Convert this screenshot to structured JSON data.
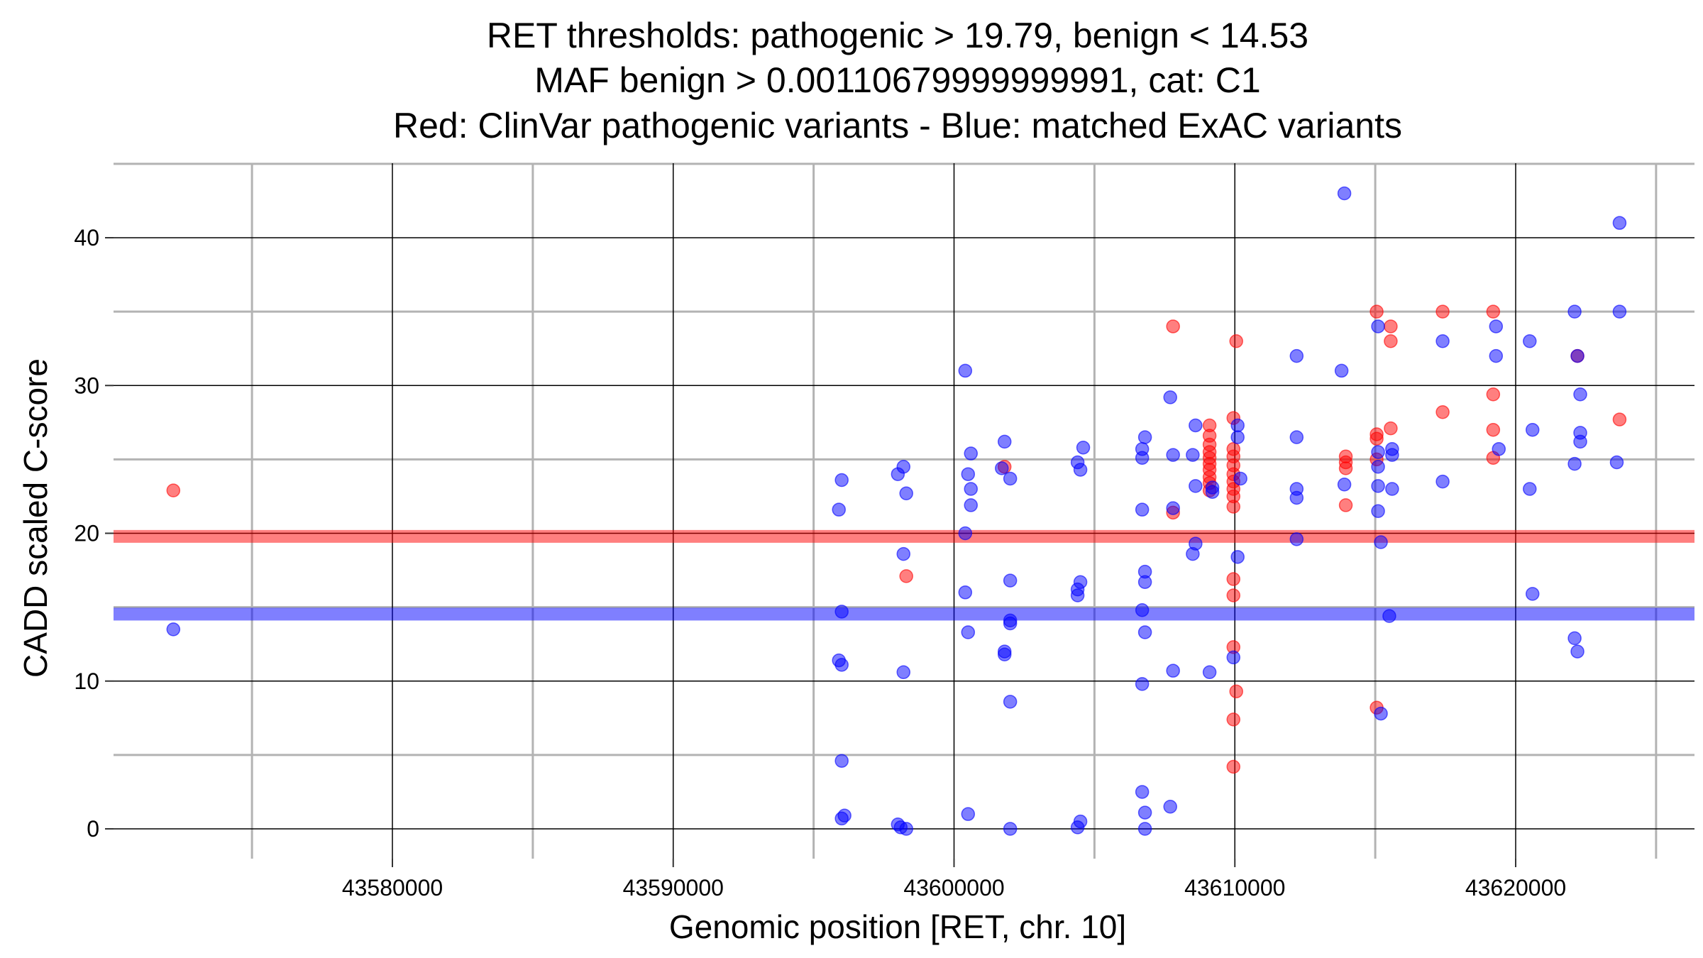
{
  "chart_data": {
    "type": "scatter",
    "title": [
      "RET thresholds: pathogenic > 19.79, benign < 14.53",
      "MAF benign > 0.00110679999999991, cat: C1",
      "Red: ClinVar pathogenic variants - Blue: matched ExAC variants"
    ],
    "xlabel": "Genomic position [RET, chr. 10]",
    "ylabel": "CADD scaled C-score",
    "xlim": [
      43569000,
      43626000
    ],
    "ylim": [
      -2,
      45
    ],
    "xticks": [
      43580000,
      43590000,
      43600000,
      43610000,
      43620000
    ],
    "xtick_labels": [
      "43580000",
      "43590000",
      "43600000",
      "43610000",
      "43620000"
    ],
    "yticks": [
      0,
      10,
      20,
      30,
      40
    ],
    "ytick_labels": [
      "0",
      "10",
      "20",
      "30",
      "40"
    ],
    "grid": true,
    "thresholds": [
      {
        "name": "pathogenic",
        "value": 19.79,
        "color": "#ff0000"
      },
      {
        "name": "benign",
        "value": 14.53,
        "color": "#0000ff"
      }
    ],
    "series": [
      {
        "name": "ClinVar pathogenic variants",
        "color": "#ff0000",
        "points": [
          [
            43572200,
            22.9
          ],
          [
            43598300,
            17.1
          ],
          [
            43601800,
            24.5
          ],
          [
            43607800,
            34.0
          ],
          [
            43607800,
            21.4
          ],
          [
            43609100,
            27.3
          ],
          [
            43609100,
            26.6
          ],
          [
            43609100,
            26.0
          ],
          [
            43609100,
            25.5
          ],
          [
            43609100,
            25.1
          ],
          [
            43609100,
            24.7
          ],
          [
            43609100,
            24.3
          ],
          [
            43609100,
            23.8
          ],
          [
            43609100,
            23.4
          ],
          [
            43609100,
            22.9
          ],
          [
            43609950,
            27.8
          ],
          [
            43609950,
            25.7
          ],
          [
            43609950,
            25.2
          ],
          [
            43609950,
            24.6
          ],
          [
            43609950,
            24.0
          ],
          [
            43609950,
            23.5
          ],
          [
            43609950,
            23.0
          ],
          [
            43609950,
            22.5
          ],
          [
            43609950,
            21.8
          ],
          [
            43609950,
            16.9
          ],
          [
            43609950,
            15.8
          ],
          [
            43609950,
            12.3
          ],
          [
            43609950,
            7.4
          ],
          [
            43609950,
            4.2
          ],
          [
            43610050,
            9.3
          ],
          [
            43610050,
            33.0
          ],
          [
            43613950,
            25.2
          ],
          [
            43613950,
            24.8
          ],
          [
            43613950,
            24.4
          ],
          [
            43613950,
            21.9
          ],
          [
            43615050,
            26.7
          ],
          [
            43615050,
            26.4
          ],
          [
            43615050,
            35.0
          ],
          [
            43615050,
            25.0
          ],
          [
            43615050,
            8.2
          ],
          [
            43615550,
            34.0
          ],
          [
            43615550,
            33.0
          ],
          [
            43615550,
            27.1
          ],
          [
            43617400,
            35.0
          ],
          [
            43617400,
            28.2
          ],
          [
            43619200,
            35.0
          ],
          [
            43619200,
            29.4
          ],
          [
            43619200,
            27.0
          ],
          [
            43619200,
            25.1
          ],
          [
            43622200,
            32.0
          ],
          [
            43623700,
            27.7
          ]
        ]
      },
      {
        "name": "matched ExAC variants",
        "color": "#0000ff",
        "points": [
          [
            43572200,
            13.5
          ],
          [
            43595900,
            21.6
          ],
          [
            43596000,
            23.6
          ],
          [
            43596000,
            14.7
          ],
          [
            43595900,
            11.4
          ],
          [
            43596000,
            11.1
          ],
          [
            43596000,
            4.6
          ],
          [
            43596000,
            0.7
          ],
          [
            43596100,
            0.9
          ],
          [
            43598000,
            24.0
          ],
          [
            43598200,
            24.5
          ],
          [
            43598300,
            22.7
          ],
          [
            43598200,
            18.6
          ],
          [
            43598200,
            10.6
          ],
          [
            43598000,
            0.3
          ],
          [
            43598100,
            0.1
          ],
          [
            43598300,
            0.0
          ],
          [
            43600400,
            31.0
          ],
          [
            43600600,
            25.4
          ],
          [
            43600500,
            24.0
          ],
          [
            43600600,
            23.0
          ],
          [
            43600600,
            21.9
          ],
          [
            43600400,
            20.0
          ],
          [
            43600400,
            16.0
          ],
          [
            43600500,
            13.3
          ],
          [
            43600500,
            1.0
          ],
          [
            43601800,
            26.2
          ],
          [
            43601700,
            24.4
          ],
          [
            43602000,
            23.7
          ],
          [
            43602000,
            16.8
          ],
          [
            43602000,
            14.1
          ],
          [
            43602000,
            13.9
          ],
          [
            43601800,
            12.0
          ],
          [
            43601800,
            11.8
          ],
          [
            43602000,
            8.6
          ],
          [
            43602000,
            0.0
          ],
          [
            43604600,
            25.8
          ],
          [
            43604400,
            24.8
          ],
          [
            43604500,
            24.3
          ],
          [
            43604500,
            16.7
          ],
          [
            43604400,
            16.2
          ],
          [
            43604400,
            15.8
          ],
          [
            43604500,
            0.5
          ],
          [
            43604400,
            0.1
          ],
          [
            43606800,
            26.5
          ],
          [
            43606700,
            25.7
          ],
          [
            43606700,
            25.1
          ],
          [
            43606700,
            21.6
          ],
          [
            43606800,
            17.4
          ],
          [
            43606800,
            16.7
          ],
          [
            43606700,
            14.8
          ],
          [
            43606800,
            13.3
          ],
          [
            43606700,
            9.8
          ],
          [
            43606700,
            2.5
          ],
          [
            43606800,
            1.1
          ],
          [
            43606800,
            0.0
          ],
          [
            43607700,
            29.2
          ],
          [
            43607800,
            25.3
          ],
          [
            43607800,
            21.7
          ],
          [
            43607800,
            10.7
          ],
          [
            43607700,
            1.5
          ],
          [
            43608600,
            27.3
          ],
          [
            43608500,
            25.3
          ],
          [
            43608600,
            23.2
          ],
          [
            43608600,
            19.3
          ],
          [
            43608500,
            18.6
          ],
          [
            43609100,
            10.6
          ],
          [
            43609200,
            23.1
          ],
          [
            43609200,
            22.8
          ],
          [
            43610100,
            27.3
          ],
          [
            43610100,
            26.5
          ],
          [
            43610200,
            23.7
          ],
          [
            43610100,
            18.4
          ],
          [
            43609950,
            11.6
          ],
          [
            43612200,
            32.0
          ],
          [
            43612200,
            26.5
          ],
          [
            43612200,
            23.0
          ],
          [
            43612200,
            22.4
          ],
          [
            43612200,
            19.6
          ],
          [
            43613900,
            43.0
          ],
          [
            43613800,
            31.0
          ],
          [
            43613900,
            23.3
          ],
          [
            43615100,
            34.0
          ],
          [
            43615100,
            25.5
          ],
          [
            43615100,
            24.5
          ],
          [
            43615100,
            23.2
          ],
          [
            43615100,
            21.5
          ],
          [
            43615200,
            19.4
          ],
          [
            43615200,
            7.8
          ],
          [
            43615600,
            25.7
          ],
          [
            43615600,
            25.3
          ],
          [
            43615600,
            23.0
          ],
          [
            43615500,
            14.4
          ],
          [
            43617400,
            33.0
          ],
          [
            43617400,
            23.5
          ],
          [
            43619300,
            34.0
          ],
          [
            43619300,
            32.0
          ],
          [
            43619400,
            25.7
          ],
          [
            43620500,
            33.0
          ],
          [
            43620600,
            27.0
          ],
          [
            43620500,
            23.0
          ],
          [
            43620600,
            15.9
          ],
          [
            43622100,
            35.0
          ],
          [
            43622100,
            24.7
          ],
          [
            43622200,
            32.0
          ],
          [
            43622300,
            29.4
          ],
          [
            43622300,
            26.8
          ],
          [
            43622300,
            26.2
          ],
          [
            43622100,
            12.9
          ],
          [
            43622200,
            12.0
          ],
          [
            43623700,
            41.0
          ],
          [
            43623700,
            35.0
          ],
          [
            43623600,
            24.8
          ]
        ]
      }
    ]
  }
}
